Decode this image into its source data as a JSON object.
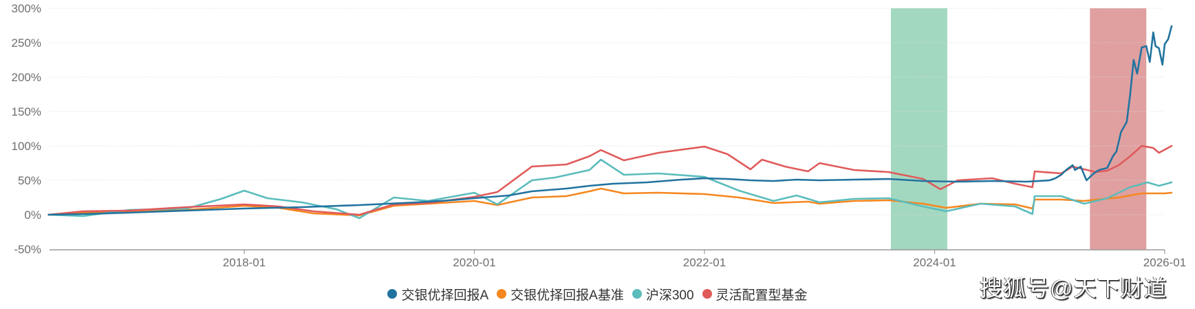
{
  "chart_data": {
    "type": "line",
    "title": "",
    "xlabel": "",
    "ylabel": "",
    "ylim": [
      -50,
      300
    ],
    "y_ticks": [
      "300%",
      "250%",
      "200%",
      "150%",
      "100%",
      "50%",
      "0%",
      "-50%"
    ],
    "y_tick_values": [
      300,
      250,
      200,
      150,
      100,
      50,
      0,
      -50
    ],
    "x_ticks": [
      "2018-01",
      "2020-01",
      "2022-01",
      "2024-01",
      "2026-01"
    ],
    "x_tick_values": [
      2018.0,
      2020.0,
      2022.0,
      2024.0,
      2026.0
    ],
    "xlim": [
      2016.3,
      2026.0
    ],
    "grid": true,
    "legend_position": "bottom",
    "shaded_regions": [
      {
        "name": "green-period",
        "start": 2023.62,
        "end": 2024.11,
        "color": "#a3d8c0"
      },
      {
        "name": "red-period",
        "start": 2025.35,
        "end": 2025.84,
        "color": "#e0a0a0"
      }
    ],
    "series": [
      {
        "name": "交银优择回报A",
        "color": "#21739f",
        "points": [
          [
            2016.3,
            0
          ],
          [
            2016.6,
            1
          ],
          [
            2017.0,
            3
          ],
          [
            2017.5,
            6
          ],
          [
            2018.0,
            9
          ],
          [
            2018.5,
            11
          ],
          [
            2019.0,
            14
          ],
          [
            2019.5,
            18
          ],
          [
            2019.8,
            21
          ],
          [
            2020.0,
            24
          ],
          [
            2020.3,
            28
          ],
          [
            2020.5,
            34
          ],
          [
            2020.8,
            38
          ],
          [
            2021.0,
            42
          ],
          [
            2021.2,
            45
          ],
          [
            2021.5,
            47
          ],
          [
            2021.8,
            51
          ],
          [
            2022.0,
            53
          ],
          [
            2022.2,
            52
          ],
          [
            2022.4,
            50
          ],
          [
            2022.6,
            49
          ],
          [
            2022.8,
            51
          ],
          [
            2023.0,
            50
          ],
          [
            2023.3,
            51
          ],
          [
            2023.6,
            52
          ],
          [
            2023.9,
            49
          ],
          [
            2024.2,
            48
          ],
          [
            2024.5,
            49
          ],
          [
            2024.8,
            48
          ],
          [
            2025.0,
            50
          ],
          [
            2025.05,
            53
          ],
          [
            2025.1,
            58
          ],
          [
            2025.15,
            66
          ],
          [
            2025.2,
            72
          ],
          [
            2025.22,
            65
          ],
          [
            2025.27,
            70
          ],
          [
            2025.32,
            50
          ],
          [
            2025.37,
            58
          ],
          [
            2025.4,
            62
          ],
          [
            2025.43,
            65
          ],
          [
            2025.5,
            68
          ],
          [
            2025.55,
            85
          ],
          [
            2025.58,
            92
          ],
          [
            2025.62,
            120
          ],
          [
            2025.67,
            135
          ],
          [
            2025.7,
            175
          ],
          [
            2025.73,
            225
          ],
          [
            2025.76,
            205
          ],
          [
            2025.8,
            243
          ],
          [
            2025.84,
            245
          ],
          [
            2025.87,
            222
          ],
          [
            2025.9,
            265
          ],
          [
            2025.92,
            245
          ],
          [
            2025.95,
            242
          ],
          [
            2025.98,
            218
          ],
          [
            2026.0,
            248
          ],
          [
            2026.03,
            255
          ],
          [
            2026.06,
            274
          ]
        ]
      },
      {
        "name": "交银优择回报A基准",
        "color": "#f5871f",
        "points": [
          [
            2016.3,
            0
          ],
          [
            2016.6,
            3
          ],
          [
            2017.0,
            4
          ],
          [
            2017.5,
            7
          ],
          [
            2018.0,
            13
          ],
          [
            2018.3,
            10
          ],
          [
            2018.6,
            2
          ],
          [
            2019.0,
            -1
          ],
          [
            2019.3,
            13
          ],
          [
            2019.6,
            16
          ],
          [
            2020.0,
            20
          ],
          [
            2020.2,
            14
          ],
          [
            2020.5,
            25
          ],
          [
            2020.8,
            27
          ],
          [
            2021.0,
            34
          ],
          [
            2021.1,
            38
          ],
          [
            2021.3,
            31
          ],
          [
            2021.6,
            32
          ],
          [
            2022.0,
            30
          ],
          [
            2022.3,
            25
          ],
          [
            2022.6,
            17
          ],
          [
            2022.9,
            19
          ],
          [
            2023.0,
            16
          ],
          [
            2023.3,
            20
          ],
          [
            2023.6,
            21
          ],
          [
            2023.9,
            16
          ],
          [
            2024.1,
            10
          ],
          [
            2024.4,
            16
          ],
          [
            2024.7,
            15
          ],
          [
            2024.85,
            9
          ],
          [
            2024.87,
            22
          ],
          [
            2025.1,
            22
          ],
          [
            2025.3,
            20
          ],
          [
            2025.4,
            22
          ],
          [
            2025.6,
            25
          ],
          [
            2025.8,
            31
          ],
          [
            2026.0,
            31
          ],
          [
            2026.06,
            32
          ]
        ]
      },
      {
        "name": "沪深300",
        "color": "#5bbcbc",
        "points": [
          [
            2016.3,
            0
          ],
          [
            2016.6,
            -2
          ],
          [
            2017.0,
            7
          ],
          [
            2017.5,
            9
          ],
          [
            2017.8,
            23
          ],
          [
            2018.0,
            35
          ],
          [
            2018.2,
            24
          ],
          [
            2018.5,
            18
          ],
          [
            2018.8,
            8
          ],
          [
            2019.0,
            -5
          ],
          [
            2019.3,
            25
          ],
          [
            2019.6,
            20
          ],
          [
            2020.0,
            32
          ],
          [
            2020.2,
            15
          ],
          [
            2020.5,
            50
          ],
          [
            2020.7,
            54
          ],
          [
            2021.0,
            65
          ],
          [
            2021.1,
            80
          ],
          [
            2021.3,
            58
          ],
          [
            2021.6,
            60
          ],
          [
            2022.0,
            55
          ],
          [
            2022.3,
            35
          ],
          [
            2022.6,
            20
          ],
          [
            2022.8,
            28
          ],
          [
            2023.0,
            18
          ],
          [
            2023.3,
            23
          ],
          [
            2023.6,
            24
          ],
          [
            2023.9,
            12
          ],
          [
            2024.1,
            5
          ],
          [
            2024.4,
            16
          ],
          [
            2024.7,
            12
          ],
          [
            2024.85,
            1
          ],
          [
            2024.87,
            27
          ],
          [
            2025.1,
            27
          ],
          [
            2025.3,
            16
          ],
          [
            2025.5,
            24
          ],
          [
            2025.7,
            40
          ],
          [
            2025.85,
            47
          ],
          [
            2025.95,
            42
          ],
          [
            2026.06,
            47
          ]
        ]
      },
      {
        "name": "灵活配置型基金",
        "color": "#e05a5a",
        "points": [
          [
            2016.3,
            0
          ],
          [
            2016.6,
            5
          ],
          [
            2017.0,
            6
          ],
          [
            2017.5,
            11
          ],
          [
            2018.0,
            15
          ],
          [
            2018.3,
            12
          ],
          [
            2018.6,
            5
          ],
          [
            2019.0,
            0
          ],
          [
            2019.3,
            15
          ],
          [
            2019.6,
            17
          ],
          [
            2020.0,
            26
          ],
          [
            2020.2,
            33
          ],
          [
            2020.5,
            70
          ],
          [
            2020.8,
            73
          ],
          [
            2021.0,
            85
          ],
          [
            2021.1,
            94
          ],
          [
            2021.3,
            79
          ],
          [
            2021.6,
            90
          ],
          [
            2022.0,
            99
          ],
          [
            2022.2,
            88
          ],
          [
            2022.4,
            66
          ],
          [
            2022.5,
            80
          ],
          [
            2022.7,
            70
          ],
          [
            2022.9,
            63
          ],
          [
            2023.0,
            75
          ],
          [
            2023.3,
            65
          ],
          [
            2023.6,
            62
          ],
          [
            2023.9,
            52
          ],
          [
            2024.05,
            37
          ],
          [
            2024.2,
            50
          ],
          [
            2024.5,
            53
          ],
          [
            2024.7,
            45
          ],
          [
            2024.85,
            40
          ],
          [
            2024.87,
            63
          ],
          [
            2025.1,
            60
          ],
          [
            2025.2,
            70
          ],
          [
            2025.4,
            62
          ],
          [
            2025.5,
            64
          ],
          [
            2025.6,
            72
          ],
          [
            2025.7,
            85
          ],
          [
            2025.8,
            100
          ],
          [
            2025.9,
            97
          ],
          [
            2025.95,
            90
          ],
          [
            2026.06,
            100
          ]
        ]
      }
    ]
  },
  "legend": {
    "items": [
      {
        "label": "交银优择回报A",
        "color": "#21739f"
      },
      {
        "label": "交银优择回报A基准",
        "color": "#f5871f"
      },
      {
        "label": "沪深300",
        "color": "#5bbcbc"
      },
      {
        "label": "灵活配置型基金",
        "color": "#e05a5a"
      }
    ]
  },
  "watermark": {
    "text": "搜狐号@天下财道"
  }
}
